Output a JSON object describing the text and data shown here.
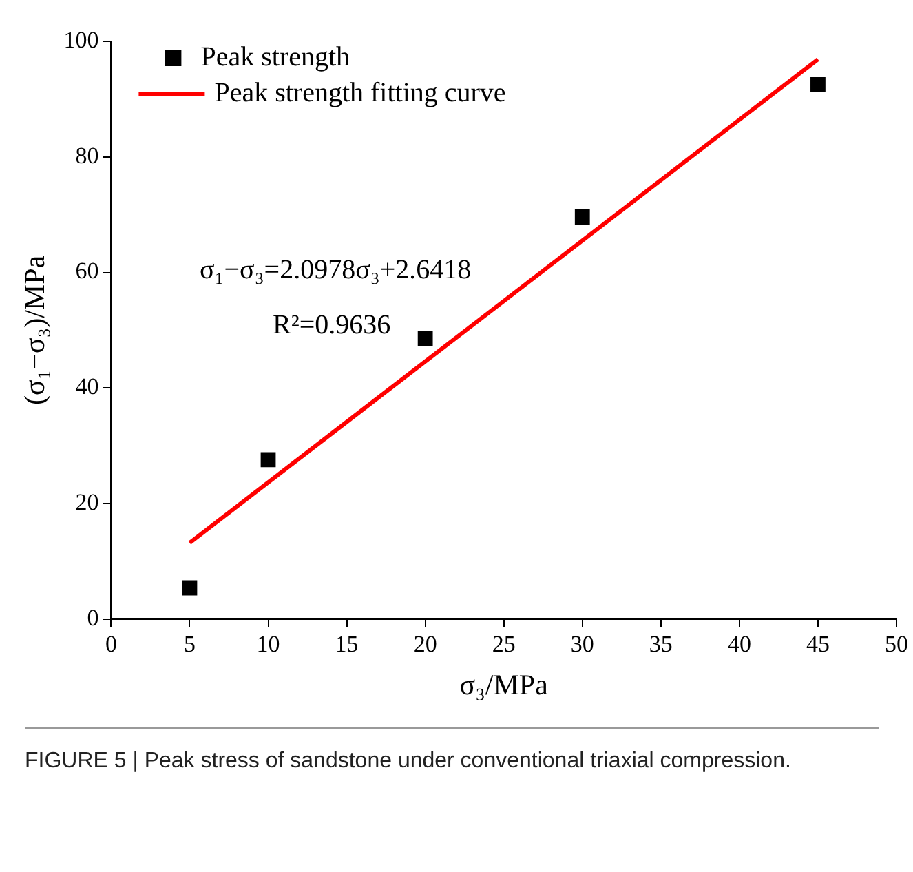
{
  "chart_data": {
    "type": "scatter",
    "xlabel": "σ₃/MPa",
    "ylabel": "(σ₁−σ₃)/MPa",
    "series": [
      {
        "name": "Peak strength",
        "color": "#000000",
        "marker": "square",
        "x": [
          5,
          10,
          20,
          30,
          45
        ],
        "values": [
          5.4,
          27.6,
          48.5,
          69.6,
          92.5
        ]
      },
      {
        "name": "Peak strength fitting curve",
        "type": "line",
        "color": "#ff0000",
        "marker": "none",
        "x": [
          5,
          45
        ],
        "values": [
          13.2,
          96.9
        ]
      }
    ],
    "xlim": [
      0,
      50
    ],
    "xticks": [
      0,
      5,
      10,
      15,
      20,
      25,
      30,
      35,
      40,
      45,
      50
    ],
    "ylim": [
      0,
      100
    ],
    "yticks": [
      0,
      20,
      40,
      60,
      80,
      100
    ],
    "grid": false,
    "legend": "top left",
    "annotations": [
      "σ₁−σ₃=2.0978σ₃+2.6418",
      "R²=0.9636",
      "FIGURE 5 | Peak stress of sandstone under conventional triaxial compression."
    ]
  }
}
